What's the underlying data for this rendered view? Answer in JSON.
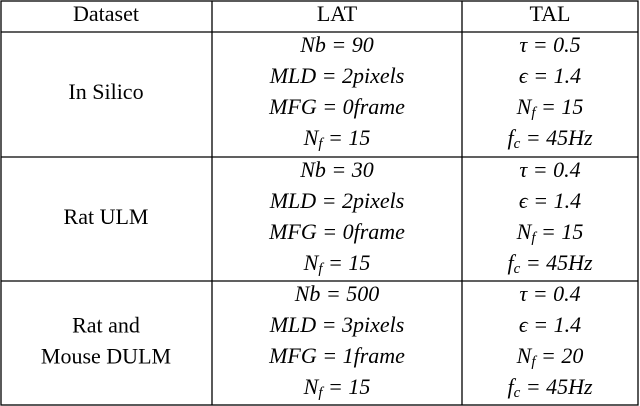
{
  "table": {
    "header": [
      "Dataset",
      "LAT",
      "TAL"
    ],
    "rows": [
      {
        "dataset": [
          "In Silico"
        ],
        "lat": [
          {
            "main": "Nb = 90"
          },
          {
            "main": "MLD = 2pixels"
          },
          {
            "main": "MFG = 0frame"
          },
          {
            "main": "N",
            "sub": "f",
            "rest": " = 15"
          }
        ],
        "tal": [
          {
            "main": "τ = 0.5"
          },
          {
            "main": "ϵ = 1.4"
          },
          {
            "main": "N",
            "sub": "f",
            "rest": " = 15"
          },
          {
            "main": "f",
            "sub": "c",
            "rest": " = 45Hz"
          }
        ]
      },
      {
        "dataset": [
          "Rat ULM"
        ],
        "lat": [
          {
            "main": "Nb = 30"
          },
          {
            "main": "MLD = 2pixels"
          },
          {
            "main": "MFG = 0frame"
          },
          {
            "main": "N",
            "sub": "f",
            "rest": " = 15"
          }
        ],
        "tal": [
          {
            "main": "τ = 0.4"
          },
          {
            "main": "ϵ = 1.4"
          },
          {
            "main": "N",
            "sub": "f",
            "rest": " = 15"
          },
          {
            "main": "f",
            "sub": "c",
            "rest": " = 45Hz"
          }
        ]
      },
      {
        "dataset": [
          "Rat and",
          "Mouse DULM"
        ],
        "lat": [
          {
            "main": "Nb = 500"
          },
          {
            "main": "MLD = 3pixels"
          },
          {
            "main": "MFG = 1frame"
          },
          {
            "main": "N",
            "sub": "f",
            "rest": " = 15"
          }
        ],
        "tal": [
          {
            "main": "τ = 0.4"
          },
          {
            "main": "ϵ = 1.4"
          },
          {
            "main": "N",
            "sub": "f",
            "rest": " = 20"
          },
          {
            "main": "f",
            "sub": "c",
            "rest": " = 45Hz"
          }
        ]
      }
    ]
  }
}
